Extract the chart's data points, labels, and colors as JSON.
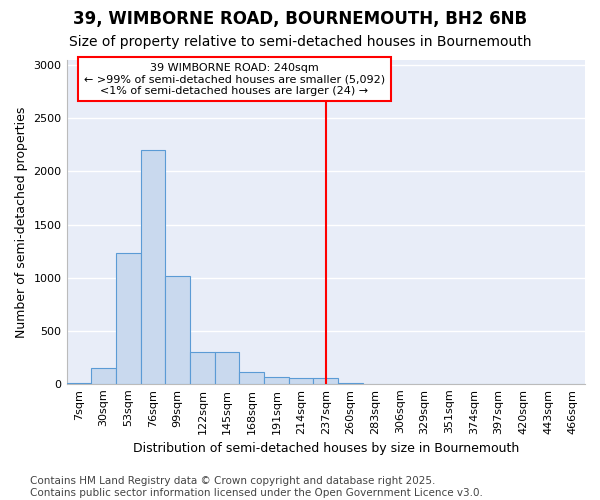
{
  "title1": "39, WIMBORNE ROAD, BOURNEMOUTH, BH2 6NB",
  "title2": "Size of property relative to semi-detached houses in Bournemouth",
  "xlabel": "Distribution of semi-detached houses by size in Bournemouth",
  "ylabel": "Number of semi-detached properties",
  "footnote": "Contains HM Land Registry data © Crown copyright and database right 2025.\nContains public sector information licensed under the Open Government Licence v3.0.",
  "bar_labels": [
    "7sqm",
    "30sqm",
    "53sqm",
    "76sqm",
    "99sqm",
    "122sqm",
    "145sqm",
    "168sqm",
    "191sqm",
    "214sqm",
    "237sqm",
    "260sqm",
    "283sqm",
    "306sqm",
    "329sqm",
    "351sqm",
    "374sqm",
    "397sqm",
    "420sqm",
    "443sqm",
    "466sqm"
  ],
  "bar_values": [
    5,
    150,
    1230,
    2200,
    1020,
    300,
    300,
    110,
    65,
    50,
    50,
    5,
    0,
    0,
    0,
    0,
    0,
    0,
    0,
    0,
    0
  ],
  "bar_color": "#c9d9ee",
  "bar_edge_color": "#5b9bd5",
  "vline_idx": 10,
  "annotation_title": "39 WIMBORNE ROAD: 240sqm",
  "annotation_line1": "← >99% of semi-detached houses are smaller (5,092)",
  "annotation_line2": "<1% of semi-detached houses are larger (24) →",
  "ylim": [
    0,
    3050
  ],
  "yticks": [
    0,
    500,
    1000,
    1500,
    2000,
    2500,
    3000
  ],
  "plot_bg": "#e8edf8",
  "fig_bg": "#ffffff",
  "title1_fontsize": 12,
  "title2_fontsize": 10,
  "axis_label_fontsize": 9,
  "tick_fontsize": 8,
  "annot_fontsize": 8,
  "footnote_fontsize": 7.5
}
